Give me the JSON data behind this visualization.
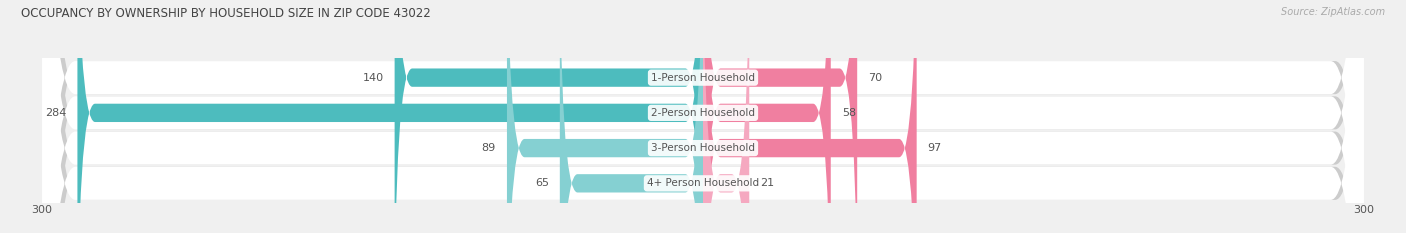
{
  "title": "OCCUPANCY BY OWNERSHIP BY HOUSEHOLD SIZE IN ZIP CODE 43022",
  "source": "Source: ZipAtlas.com",
  "categories": [
    "1-Person Household",
    "2-Person Household",
    "3-Person Household",
    "4+ Person Household"
  ],
  "owner_values": [
    140,
    284,
    89,
    65
  ],
  "renter_values": [
    70,
    58,
    97,
    21
  ],
  "owner_color": "#4dbcbe",
  "renter_color": "#f07fa0",
  "owner_color_light": "#85d0d2",
  "renter_color_light": "#f5a8c0",
  "axis_max": 300,
  "bg_color": "#f0f0f0",
  "row_bg_color": "#e8e8e8",
  "title_color": "#444444",
  "value_color": "#555555",
  "category_label_color": "#555555",
  "source_color": "#aaaaaa",
  "figsize": [
    14.06,
    2.33
  ],
  "dpi": 100
}
